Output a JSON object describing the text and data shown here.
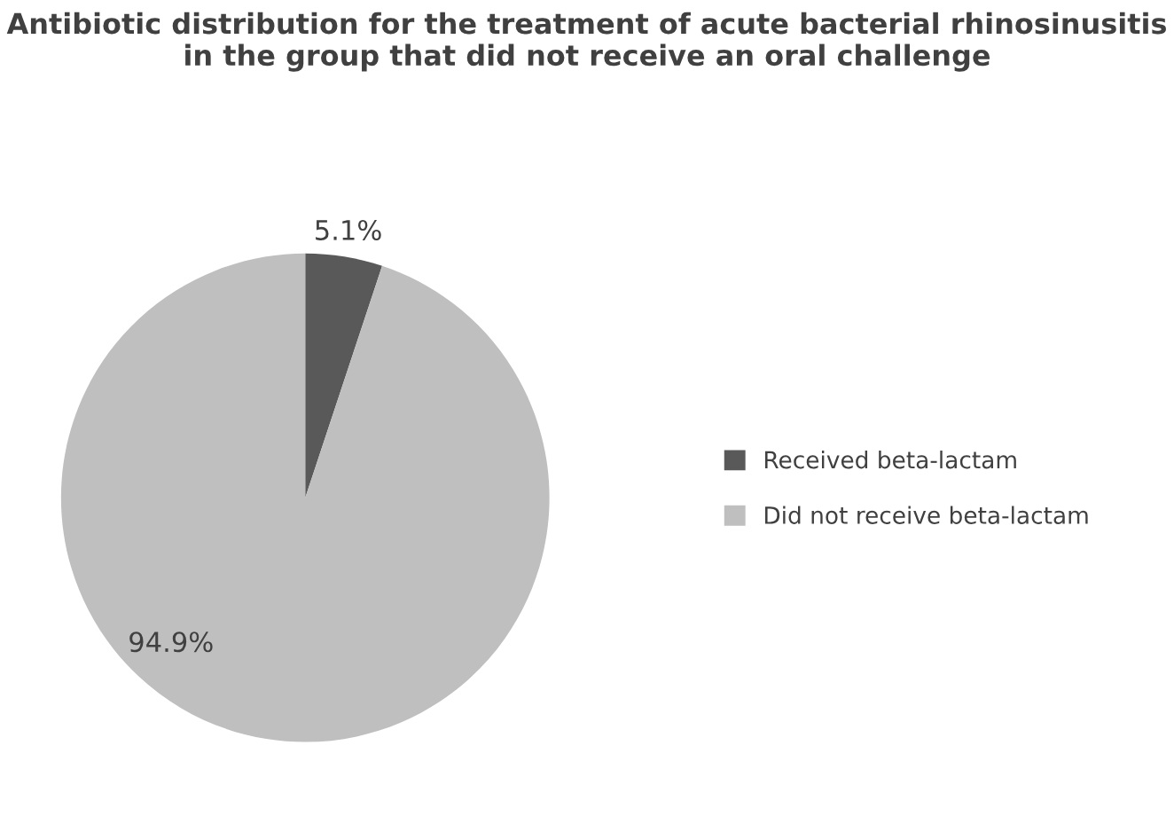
{
  "chart_data": {
    "type": "pie",
    "title": "Antibiotic distribution for the treatment of acute bacterial rhinosinusitis in the group that did not receive an oral challenge",
    "categories": [
      "Received beta-lactam",
      "Did not receive beta-lactam"
    ],
    "values": [
      5.1,
      94.9
    ],
    "colors": [
      "#595959",
      "#bfbfbf"
    ],
    "value_labels": [
      "5.1%",
      "94.9%"
    ],
    "legend": "right"
  }
}
